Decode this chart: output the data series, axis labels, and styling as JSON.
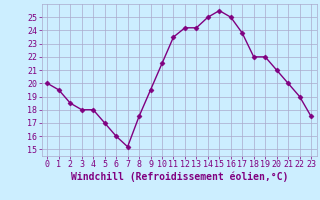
{
  "x": [
    0,
    1,
    2,
    3,
    4,
    5,
    6,
    7,
    8,
    9,
    10,
    11,
    12,
    13,
    14,
    15,
    16,
    17,
    18,
    19,
    20,
    21,
    22,
    23
  ],
  "y": [
    20.0,
    19.5,
    18.5,
    18.0,
    18.0,
    17.0,
    16.0,
    15.2,
    17.5,
    19.5,
    21.5,
    23.5,
    24.2,
    24.2,
    25.0,
    25.5,
    25.0,
    23.8,
    22.0,
    22.0,
    21.0,
    20.0,
    19.0,
    17.5
  ],
  "line_color": "#800080",
  "marker": "D",
  "marker_size": 2.5,
  "bg_color": "#cceeff",
  "grid_color": "#aaaacc",
  "xlabel": "Windchill (Refroidissement éolien,°C)",
  "xlabel_color": "#800080",
  "ylabel_ticks": [
    15,
    16,
    17,
    18,
    19,
    20,
    21,
    22,
    23,
    24,
    25
  ],
  "xlim": [
    -0.5,
    23.5
  ],
  "ylim": [
    14.5,
    26.0
  ],
  "xtick_labels": [
    "0",
    "1",
    "2",
    "3",
    "4",
    "5",
    "6",
    "7",
    "8",
    "9",
    "10",
    "11",
    "12",
    "13",
    "14",
    "15",
    "16",
    "17",
    "18",
    "19",
    "20",
    "21",
    "22",
    "23"
  ],
  "tick_color": "#800080",
  "tick_fontsize": 6.0,
  "xlabel_fontsize": 7.0,
  "grid_linewidth": 0.5,
  "line_width": 1.0
}
